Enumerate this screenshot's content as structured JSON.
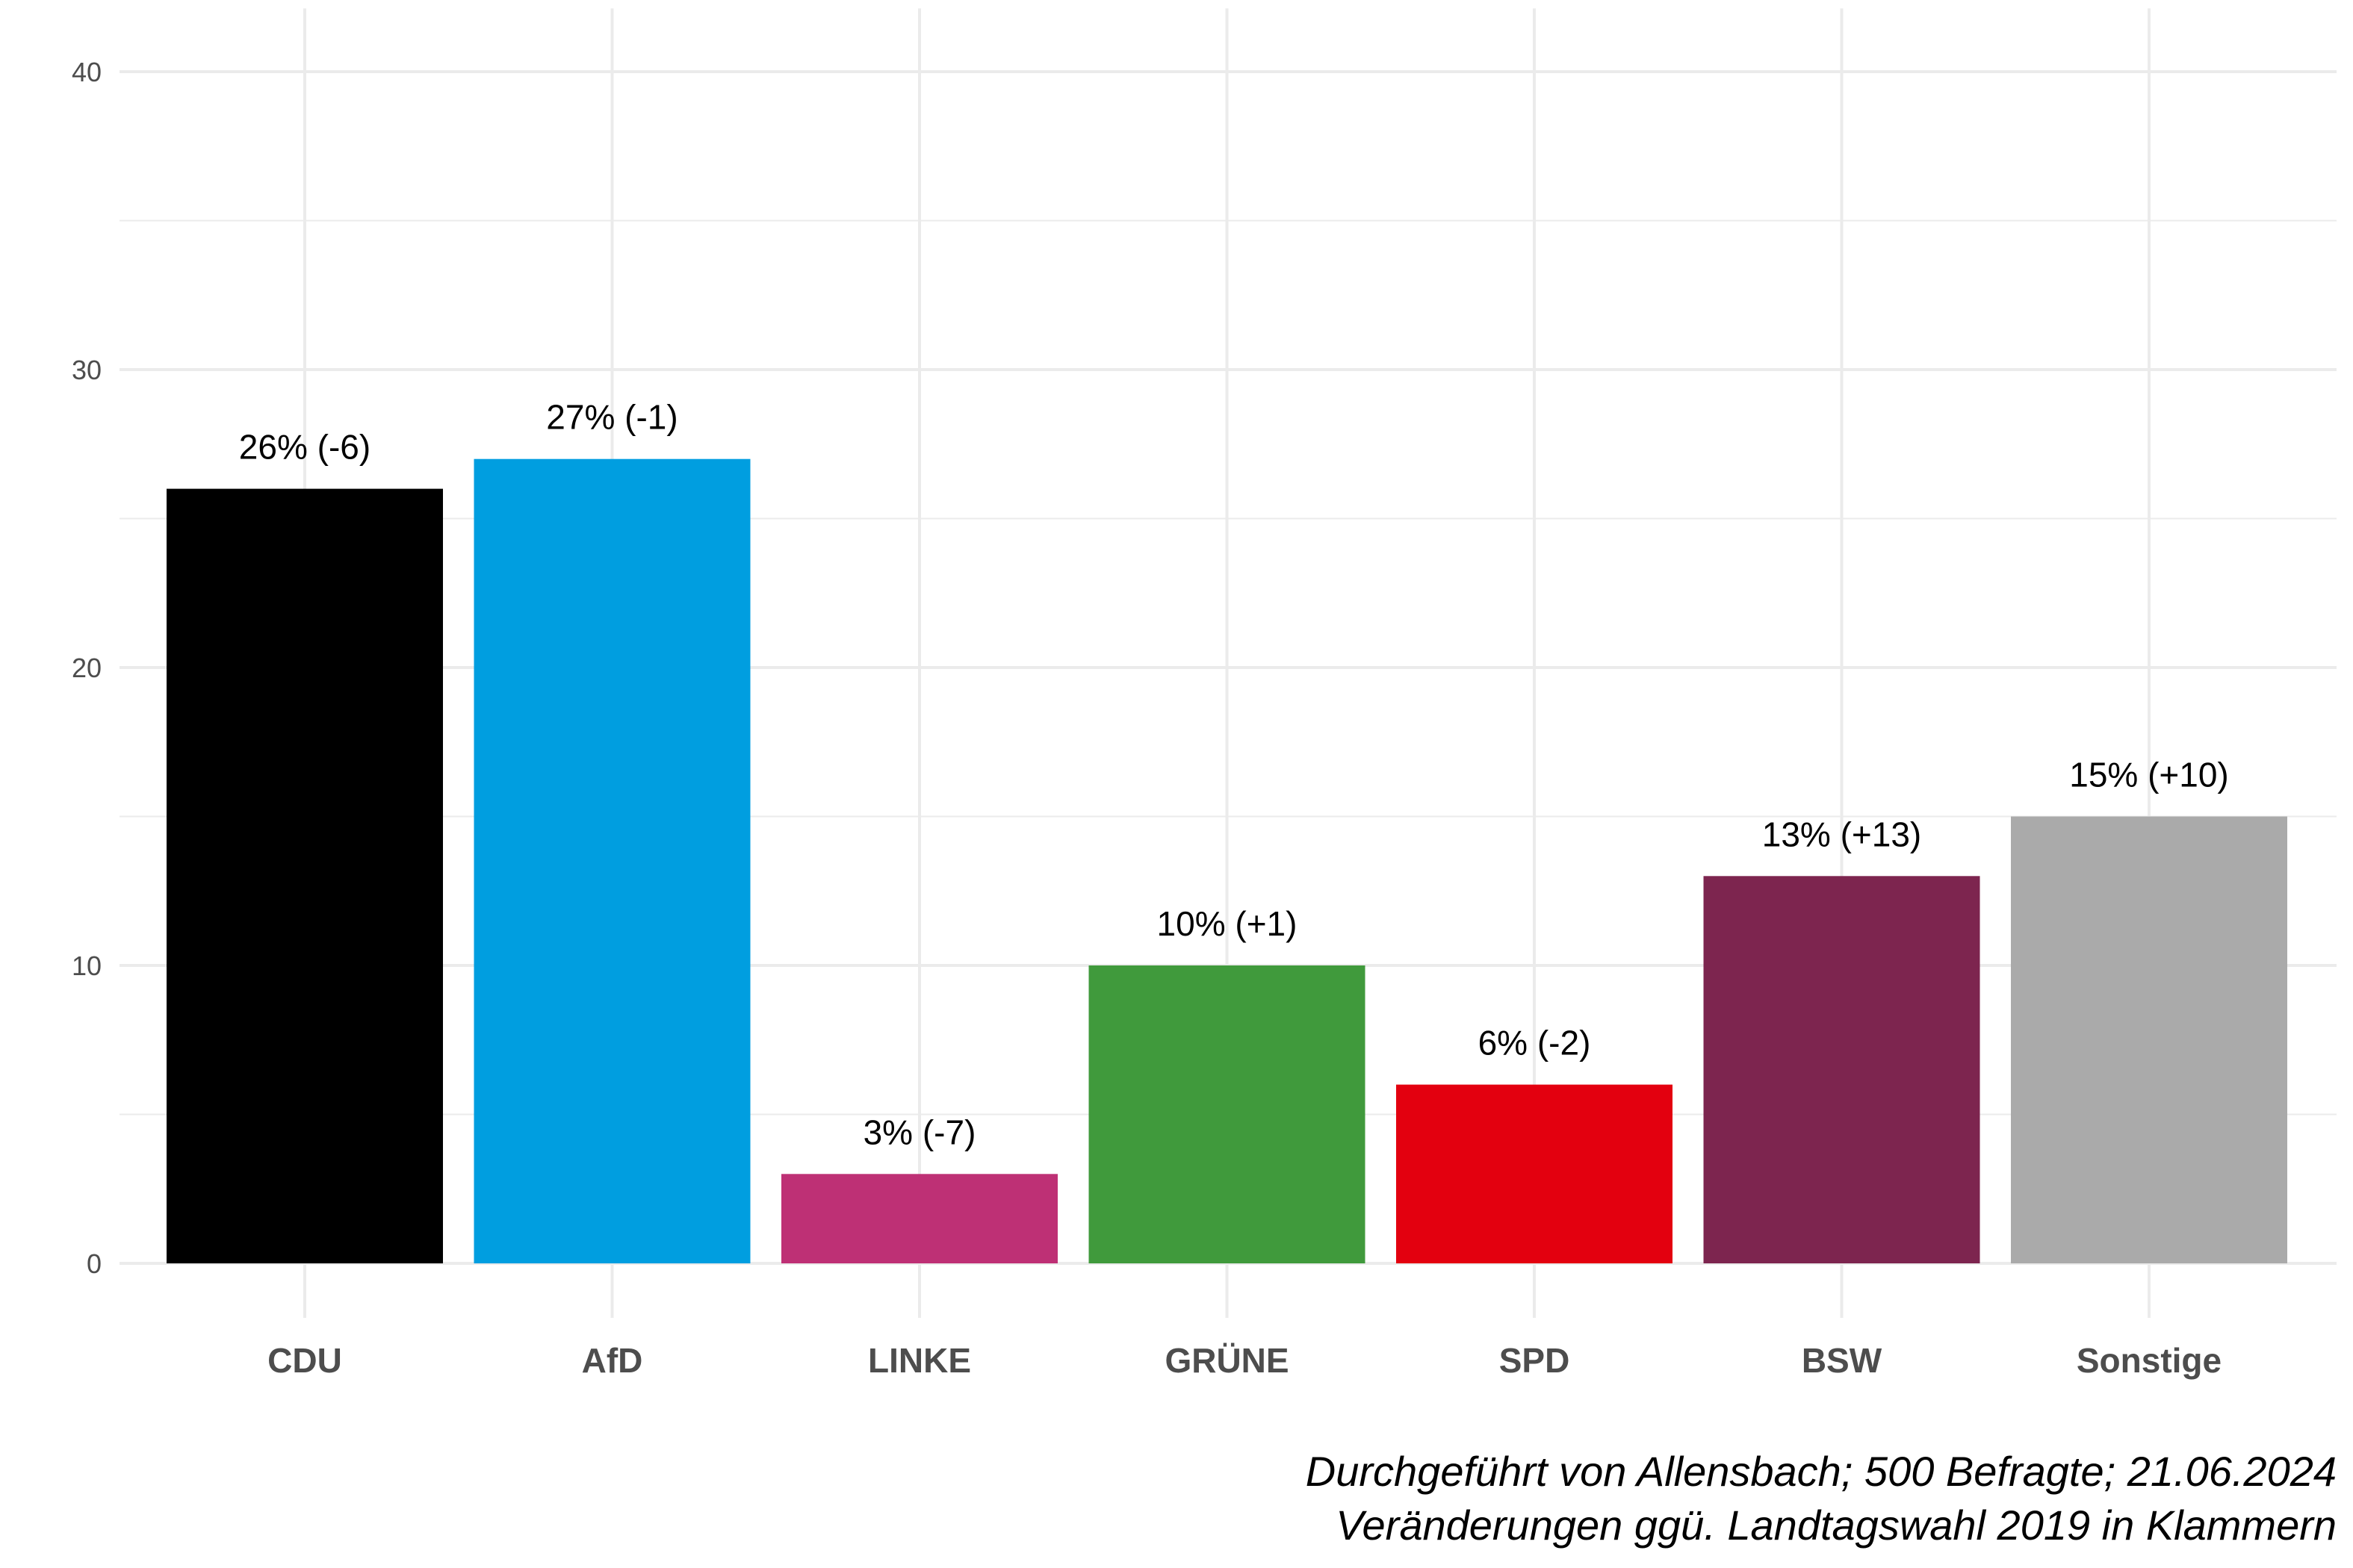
{
  "chart_data": {
    "type": "bar",
    "categories": [
      "CDU",
      "AfD",
      "LINKE",
      "GRÜNE",
      "SPD",
      "BSW",
      "Sonstige"
    ],
    "values": [
      26,
      27,
      3,
      10,
      6,
      13,
      15
    ],
    "data_labels": [
      "26% (-6)",
      "27% (-1)",
      "3% (-7)",
      "10% (+1)",
      "6% (-2)",
      "13% (+13)",
      "15% (+10)"
    ],
    "colors": [
      "#000000",
      "#009ee0",
      "#be3075",
      "#409a3c",
      "#e3000f",
      "#7d254f",
      "#aaaaaa"
    ],
    "yticks": [
      "0",
      "10",
      "20",
      "30",
      "40"
    ],
    "ylim": [
      0,
      42
    ],
    "grid": true,
    "title": "",
    "xlabel": "",
    "ylabel": ""
  },
  "caption": {
    "line1": "Durchgeführt von Allensbach; 500 Befragte; 21.06.2024",
    "line2": "Veränderungen ggü. Landtagswahl 2019 in Klammern"
  }
}
